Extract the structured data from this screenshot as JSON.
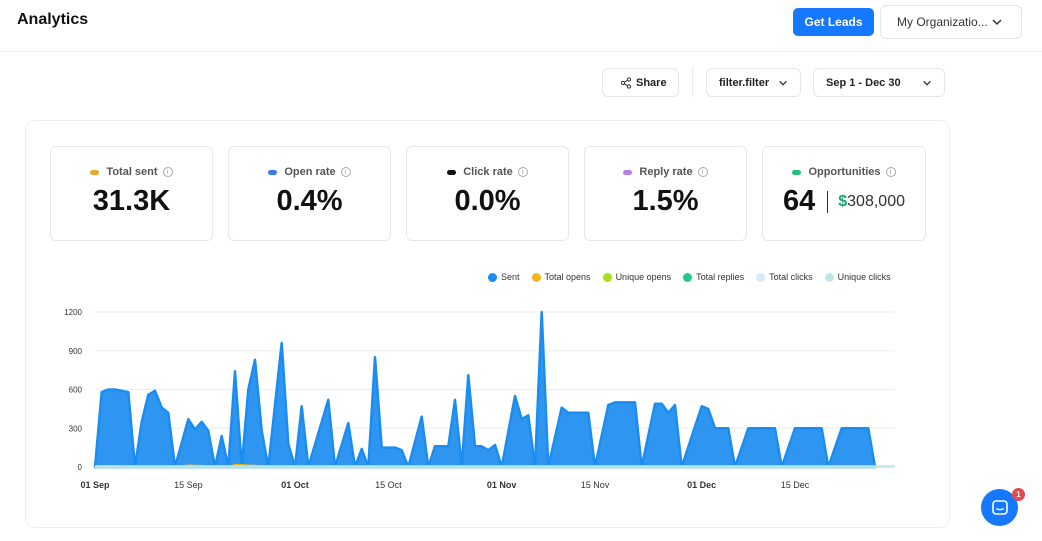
{
  "header": {
    "title": "Analytics",
    "get_leads_label": "Get Leads",
    "org_select_label": "My Organizatio..."
  },
  "toolbar": {
    "share_label": "Share",
    "filter_label": "filter.filter",
    "date_range_label": "Sep 1 - Dec 30"
  },
  "stats": [
    {
      "label": "Total sent",
      "value": "31.3K",
      "color": "#e8a82f"
    },
    {
      "label": "Open rate",
      "value": "0.4%",
      "color": "#3b7be8"
    },
    {
      "label": "Click rate",
      "value": "0.0%",
      "color": "#111111"
    },
    {
      "label": "Reply rate",
      "value": "1.5%",
      "color": "#b97ee6"
    },
    {
      "label": "Opportunities",
      "value": "64",
      "money_symbol": "$",
      "money": "308,000",
      "color": "#22c07a"
    }
  ],
  "legend": [
    {
      "name": "Sent",
      "color": "#1c8df0"
    },
    {
      "name": "Total opens",
      "color": "#f2b51c"
    },
    {
      "name": "Unique opens",
      "color": "#a8dd1c"
    },
    {
      "name": "Total replies",
      "color": "#22c98a"
    },
    {
      "name": "Total clicks",
      "color": "#d9e8f5"
    },
    {
      "name": "Unique clicks",
      "color": "#bfe6ee"
    }
  ],
  "chart_data": {
    "type": "area",
    "ylim": [
      0,
      1200
    ],
    "y_ticks": [
      "0",
      "300",
      "600",
      "900",
      "1200"
    ],
    "x_ticks": [
      {
        "label": "01 Sep",
        "bold": true
      },
      {
        "label": "15 Sep",
        "bold": false
      },
      {
        "label": "01 Oct",
        "bold": true
      },
      {
        "label": "15 Oct",
        "bold": false
      },
      {
        "label": "01 Nov",
        "bold": true
      },
      {
        "label": "15 Nov",
        "bold": false
      },
      {
        "label": "01 Dec",
        "bold": true
      },
      {
        "label": "15 Dec",
        "bold": false
      }
    ],
    "grid": true,
    "series": [
      {
        "name": "Sent",
        "color": "#1c8df0",
        "points": [
          [
            "09-01",
            0
          ],
          [
            "09-02",
            580
          ],
          [
            "09-03",
            600
          ],
          [
            "09-04",
            600
          ],
          [
            "09-05",
            590
          ],
          [
            "09-06",
            580
          ],
          [
            "09-07",
            0
          ],
          [
            "09-08",
            350
          ],
          [
            "09-09",
            560
          ],
          [
            "09-10",
            590
          ],
          [
            "09-11",
            460
          ],
          [
            "09-12",
            420
          ],
          [
            "09-13",
            0
          ],
          [
            "09-15",
            370
          ],
          [
            "09-16",
            290
          ],
          [
            "09-17",
            350
          ],
          [
            "09-18",
            280
          ],
          [
            "09-19",
            0
          ],
          [
            "09-20",
            240
          ],
          [
            "09-21",
            0
          ],
          [
            "09-22",
            740
          ],
          [
            "09-23",
            0
          ],
          [
            "09-24",
            600
          ],
          [
            "09-25",
            830
          ],
          [
            "09-26",
            280
          ],
          [
            "09-27",
            0
          ],
          [
            "09-29",
            960
          ],
          [
            "09-30",
            180
          ],
          [
            "10-01",
            0
          ],
          [
            "10-02",
            470
          ],
          [
            "10-03",
            0
          ],
          [
            "10-06",
            520
          ],
          [
            "10-07",
            0
          ],
          [
            "10-09",
            340
          ],
          [
            "10-10",
            0
          ],
          [
            "10-11",
            140
          ],
          [
            "10-12",
            0
          ],
          [
            "10-13",
            850
          ],
          [
            "10-14",
            150
          ],
          [
            "10-15",
            150
          ],
          [
            "10-16",
            150
          ],
          [
            "10-17",
            130
          ],
          [
            "10-18",
            0
          ],
          [
            "10-20",
            390
          ],
          [
            "10-21",
            0
          ],
          [
            "10-22",
            160
          ],
          [
            "10-23",
            160
          ],
          [
            "10-24",
            160
          ],
          [
            "10-25",
            520
          ],
          [
            "10-26",
            0
          ],
          [
            "10-27",
            710
          ],
          [
            "10-28",
            160
          ],
          [
            "10-29",
            160
          ],
          [
            "10-30",
            130
          ],
          [
            "10-31",
            170
          ],
          [
            "11-01",
            0
          ],
          [
            "11-03",
            550
          ],
          [
            "11-04",
            370
          ],
          [
            "11-05",
            400
          ],
          [
            "11-06",
            0
          ],
          [
            "11-07",
            1200
          ],
          [
            "11-08",
            0
          ],
          [
            "11-10",
            460
          ],
          [
            "11-11",
            420
          ],
          [
            "11-12",
            420
          ],
          [
            "11-13",
            420
          ],
          [
            "11-14",
            420
          ],
          [
            "11-15",
            0
          ],
          [
            "11-17",
            480
          ],
          [
            "11-18",
            500
          ],
          [
            "11-19",
            500
          ],
          [
            "11-20",
            500
          ],
          [
            "11-21",
            500
          ],
          [
            "11-22",
            0
          ],
          [
            "11-24",
            490
          ],
          [
            "11-25",
            490
          ],
          [
            "11-26",
            420
          ],
          [
            "11-27",
            480
          ],
          [
            "11-28",
            0
          ],
          [
            "12-01",
            470
          ],
          [
            "12-02",
            450
          ],
          [
            "12-03",
            300
          ],
          [
            "12-04",
            300
          ],
          [
            "12-05",
            300
          ],
          [
            "12-06",
            0
          ],
          [
            "12-08",
            300
          ],
          [
            "12-09",
            300
          ],
          [
            "12-10",
            300
          ],
          [
            "12-11",
            300
          ],
          [
            "12-12",
            300
          ],
          [
            "12-13",
            0
          ],
          [
            "12-15",
            300
          ],
          [
            "12-16",
            300
          ],
          [
            "12-17",
            300
          ],
          [
            "12-18",
            300
          ],
          [
            "12-19",
            300
          ],
          [
            "12-20",
            0
          ],
          [
            "12-22",
            300
          ],
          [
            "12-23",
            300
          ],
          [
            "12-24",
            300
          ],
          [
            "12-25",
            300
          ],
          [
            "12-26",
            300
          ],
          [
            "12-27",
            0
          ]
        ]
      },
      {
        "name": "Total opens",
        "color": "#f2b51c",
        "points": [
          [
            "09-01",
            0
          ],
          [
            "09-03",
            10
          ],
          [
            "09-05",
            5
          ],
          [
            "09-07",
            0
          ],
          [
            "09-10",
            5
          ],
          [
            "09-13",
            0
          ],
          [
            "09-15",
            15
          ],
          [
            "09-18",
            10
          ],
          [
            "09-21",
            0
          ],
          [
            "09-22",
            20
          ],
          [
            "09-24",
            15
          ],
          [
            "09-26",
            10
          ],
          [
            "09-27",
            0
          ],
          [
            "10-13",
            5
          ],
          [
            "10-18",
            0
          ]
        ]
      },
      {
        "name": "Total replies",
        "color": "#22c98a",
        "points": [
          [
            "09-01",
            0
          ],
          [
            "09-08",
            5
          ],
          [
            "09-15",
            8
          ],
          [
            "09-22",
            8
          ],
          [
            "09-29",
            6
          ],
          [
            "10-13",
            5
          ],
          [
            "10-27",
            5
          ],
          [
            "11-07",
            6
          ],
          [
            "11-17",
            5
          ],
          [
            "12-01",
            5
          ],
          [
            "12-15",
            4
          ],
          [
            "12-27",
            0
          ]
        ]
      },
      {
        "name": "Unique clicks",
        "color": "#bfe6ee",
        "points": [
          [
            "09-01",
            0
          ],
          [
            "12-29",
            0
          ]
        ]
      }
    ]
  }
}
